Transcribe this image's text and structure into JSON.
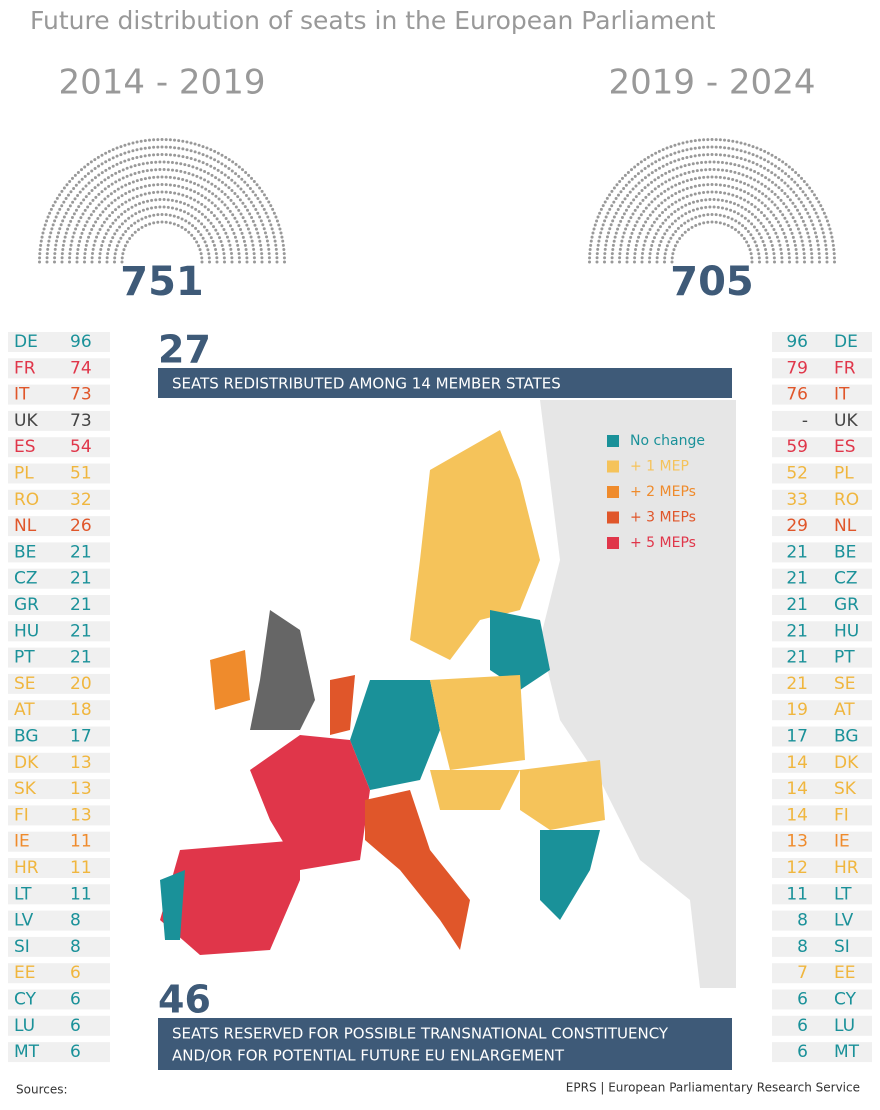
{
  "header": {
    "title": "Future distribution of seats in the European Parliament"
  },
  "periods": [
    {
      "label": "2014 - 2019",
      "total": "751"
    },
    {
      "label": "2019 - 2024",
      "total": "705"
    }
  ],
  "redistributed": {
    "number": "27",
    "text": "SEATS REDISTRIBUTED AMONG 14 MEMBER STATES"
  },
  "reserved": {
    "number": "46",
    "lines": [
      "SEATS RESERVED FOR POSSIBLE TRANSNATIONAL CONSTITUENCY",
      "AND/OR FOR POTENTIAL FUTURE EU ENLARGEMENT"
    ]
  },
  "legend": [
    {
      "label": "No change",
      "color": "#1a9199"
    },
    {
      "label": "+ 1 MEP",
      "color": "#f5c35a"
    },
    {
      "label": "+ 2 MEPs",
      "color": "#ef8b2c"
    },
    {
      "label": "+ 3 MEPs",
      "color": "#e0562a"
    },
    {
      "label": "+ 5 MEPs",
      "color": "#e0364a"
    }
  ],
  "table": {
    "rows": [
      {
        "code": "DE",
        "before": "96",
        "after": "96",
        "color": "#1a9199"
      },
      {
        "code": "FR",
        "before": "74",
        "after": "79",
        "color": "#e0364a"
      },
      {
        "code": "IT",
        "before": "73",
        "after": "76",
        "color": "#e0562a"
      },
      {
        "code": "UK",
        "before": "73",
        "after": "-",
        "color": "#444444"
      },
      {
        "code": "ES",
        "before": "54",
        "after": "59",
        "color": "#e0364a"
      },
      {
        "code": "PL",
        "before": "51",
        "after": "52",
        "color": "#f0b63e"
      },
      {
        "code": "RO",
        "before": "32",
        "after": "33",
        "color": "#f0b63e"
      },
      {
        "code": "NL",
        "before": "26",
        "after": "29",
        "color": "#e0562a"
      },
      {
        "code": "BE",
        "before": "21",
        "after": "21",
        "color": "#1a9199"
      },
      {
        "code": "CZ",
        "before": "21",
        "after": "21",
        "color": "#1a9199"
      },
      {
        "code": "GR",
        "before": "21",
        "after": "21",
        "color": "#1a9199"
      },
      {
        "code": "HU",
        "before": "21",
        "after": "21",
        "color": "#1a9199"
      },
      {
        "code": "PT",
        "before": "21",
        "after": "21",
        "color": "#1a9199"
      },
      {
        "code": "SE",
        "before": "20",
        "after": "21",
        "color": "#f0b63e"
      },
      {
        "code": "AT",
        "before": "18",
        "after": "19",
        "color": "#f0b63e"
      },
      {
        "code": "BG",
        "before": "17",
        "after": "17",
        "color": "#1a9199"
      },
      {
        "code": "DK",
        "before": "13",
        "after": "14",
        "color": "#f0b63e"
      },
      {
        "code": "SK",
        "before": "13",
        "after": "14",
        "color": "#f0b63e"
      },
      {
        "code": "FI",
        "before": "13",
        "after": "14",
        "color": "#f0b63e"
      },
      {
        "code": "IE",
        "before": "11",
        "after": "13",
        "color": "#ef8b2c"
      },
      {
        "code": "HR",
        "before": "11",
        "after": "12",
        "color": "#f0b63e"
      },
      {
        "code": "LT",
        "before": "11",
        "after": "11",
        "color": "#1a9199"
      },
      {
        "code": "LV",
        "before": "8",
        "after": "8",
        "color": "#1a9199"
      },
      {
        "code": "SI",
        "before": "8",
        "after": "8",
        "color": "#1a9199"
      },
      {
        "code": "EE",
        "before": "6",
        "after": "7",
        "color": "#f0b63e"
      },
      {
        "code": "CY",
        "before": "6",
        "after": "6",
        "color": "#1a9199"
      },
      {
        "code": "LU",
        "before": "6",
        "after": "6",
        "color": "#1a9199"
      },
      {
        "code": "MT",
        "before": "6",
        "after": "6",
        "color": "#1a9199"
      }
    ]
  },
  "footer": {
    "sources": "Sources:",
    "credit": "EPRS | European Parliamentary Research Service"
  }
}
